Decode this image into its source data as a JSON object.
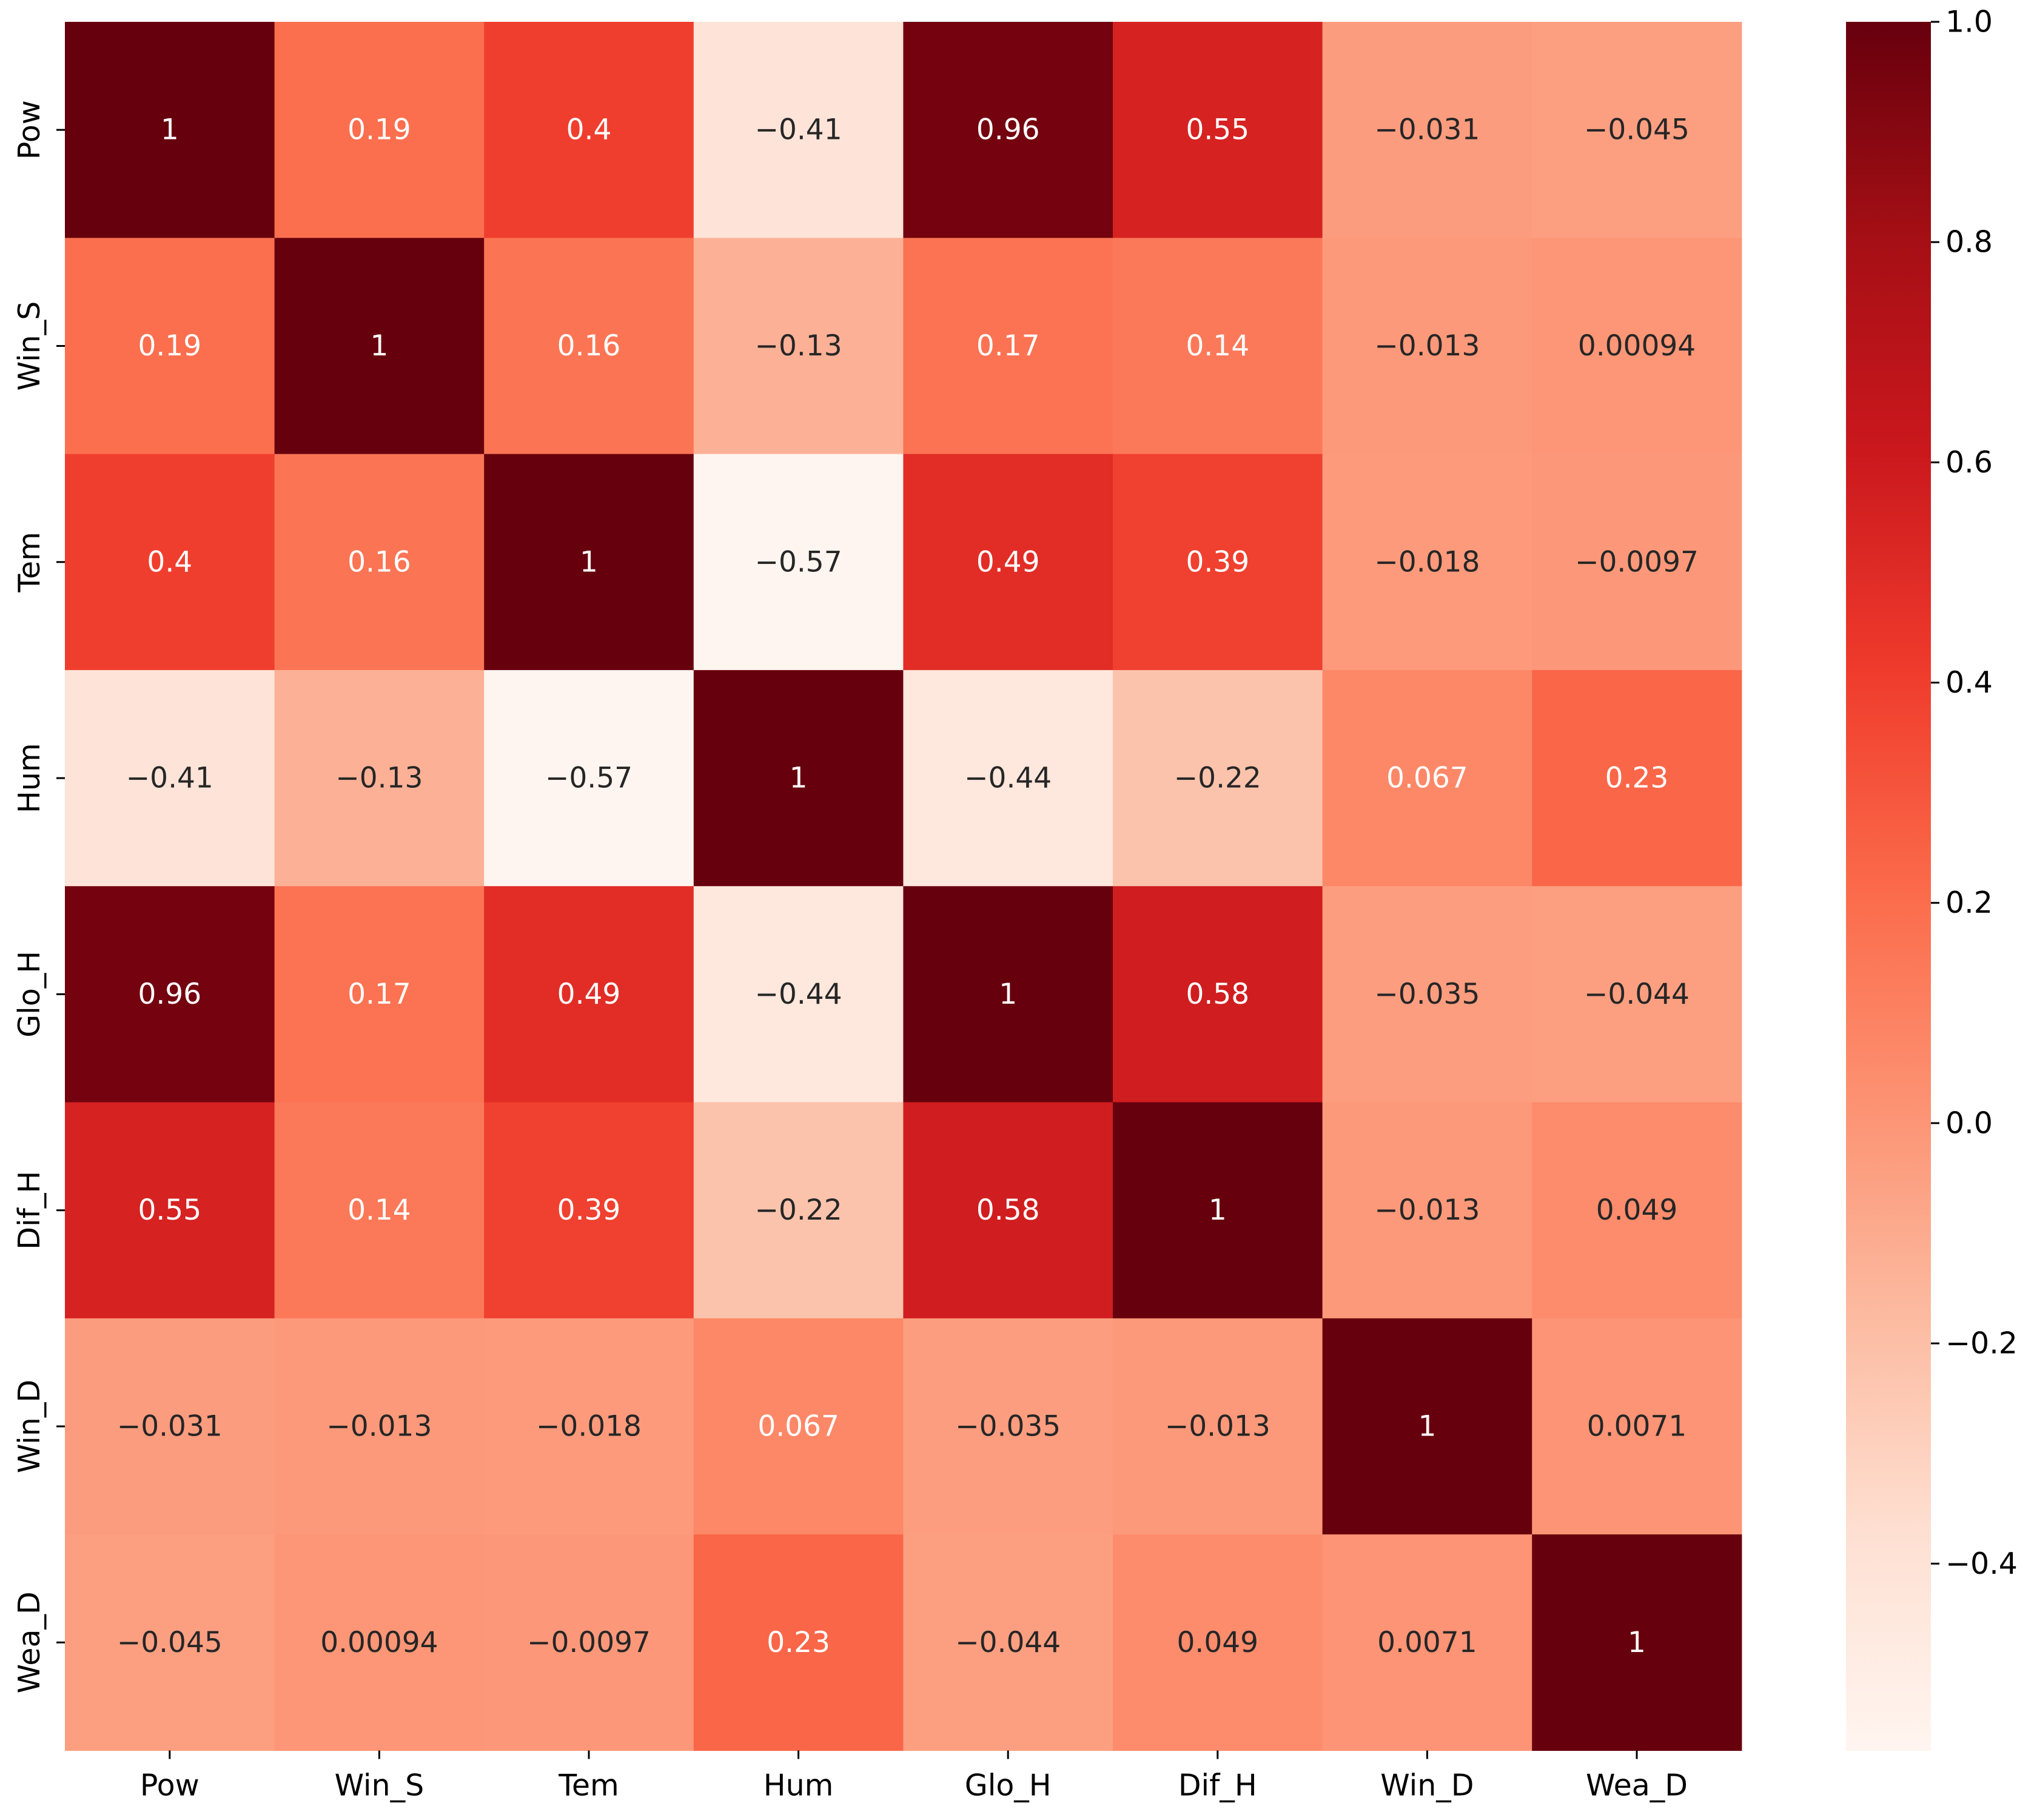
{
  "chart_data": {
    "type": "heatmap",
    "title": "",
    "xlabel": "",
    "ylabel": "",
    "row_labels": [
      "Pow",
      "Win_S",
      "Tem",
      "Hum",
      "Glo_H",
      "Dif_H",
      "Win_D",
      "Wea_D"
    ],
    "col_labels": [
      "Pow",
      "Win_S",
      "Tem",
      "Hum",
      "Glo_H",
      "Dif_H",
      "Win_D",
      "Wea_D"
    ],
    "values": [
      [
        1,
        0.19,
        0.4,
        -0.41,
        0.96,
        0.55,
        -0.031,
        -0.045
      ],
      [
        0.19,
        1,
        0.16,
        -0.13,
        0.17,
        0.14,
        -0.013,
        0.00094
      ],
      [
        0.4,
        0.16,
        1,
        -0.57,
        0.49,
        0.39,
        -0.018,
        -0.0097
      ],
      [
        -0.41,
        -0.13,
        -0.57,
        1,
        -0.44,
        -0.22,
        0.067,
        0.23
      ],
      [
        0.96,
        0.17,
        0.49,
        -0.44,
        1,
        0.58,
        -0.035,
        -0.044
      ],
      [
        0.55,
        0.14,
        0.39,
        -0.22,
        0.58,
        1,
        -0.013,
        0.049
      ],
      [
        -0.031,
        -0.013,
        -0.018,
        0.067,
        -0.035,
        -0.013,
        1,
        0.0071
      ],
      [
        -0.045,
        0.00094,
        -0.0097,
        0.23,
        -0.044,
        0.049,
        0.0071,
        1
      ]
    ],
    "annotations": [
      [
        "1",
        "0.19",
        "0.4",
        "−0.41",
        "0.96",
        "0.55",
        "−0.031",
        "−0.045"
      ],
      [
        "0.19",
        "1",
        "0.16",
        "−0.13",
        "0.17",
        "0.14",
        "−0.013",
        "0.00094"
      ],
      [
        "0.4",
        "0.16",
        "1",
        "−0.57",
        "0.49",
        "0.39",
        "−0.018",
        "−0.0097"
      ],
      [
        "−0.41",
        "−0.13",
        "−0.57",
        "1",
        "−0.44",
        "−0.22",
        "0.067",
        "0.23"
      ],
      [
        "0.96",
        "0.17",
        "0.49",
        "−0.44",
        "1",
        "0.58",
        "−0.035",
        "−0.044"
      ],
      [
        "0.55",
        "0.14",
        "0.39",
        "−0.22",
        "0.58",
        "1",
        "−0.013",
        "0.049"
      ],
      [
        "−0.031",
        "−0.013",
        "−0.018",
        "0.067",
        "−0.035",
        "−0.013",
        "1",
        "0.0071"
      ],
      [
        "−0.045",
        "0.00094",
        "−0.0097",
        "0.23",
        "−0.044",
        "0.049",
        "0.0071",
        "1"
      ]
    ],
    "vmin": -0.57,
    "vmax": 1.0,
    "colormap": "Reds",
    "colorbar_ticks": [
      1.0,
      0.8,
      0.6,
      0.4,
      0.2,
      0.0,
      -0.2,
      -0.4
    ],
    "colorbar_tick_labels": [
      "1.0",
      "0.8",
      "0.6",
      "0.4",
      "0.2",
      "0.0",
      "−0.2",
      "−0.4"
    ],
    "colormap_stops": [
      "#fff5f0",
      "#fee0d2",
      "#fcbba1",
      "#fc9272",
      "#fb6a4a",
      "#ef3b2c",
      "#cb181d",
      "#a50f15",
      "#67000d"
    ],
    "annotation_colors": {
      "light": "#ffffff",
      "dark": "#262626"
    }
  }
}
